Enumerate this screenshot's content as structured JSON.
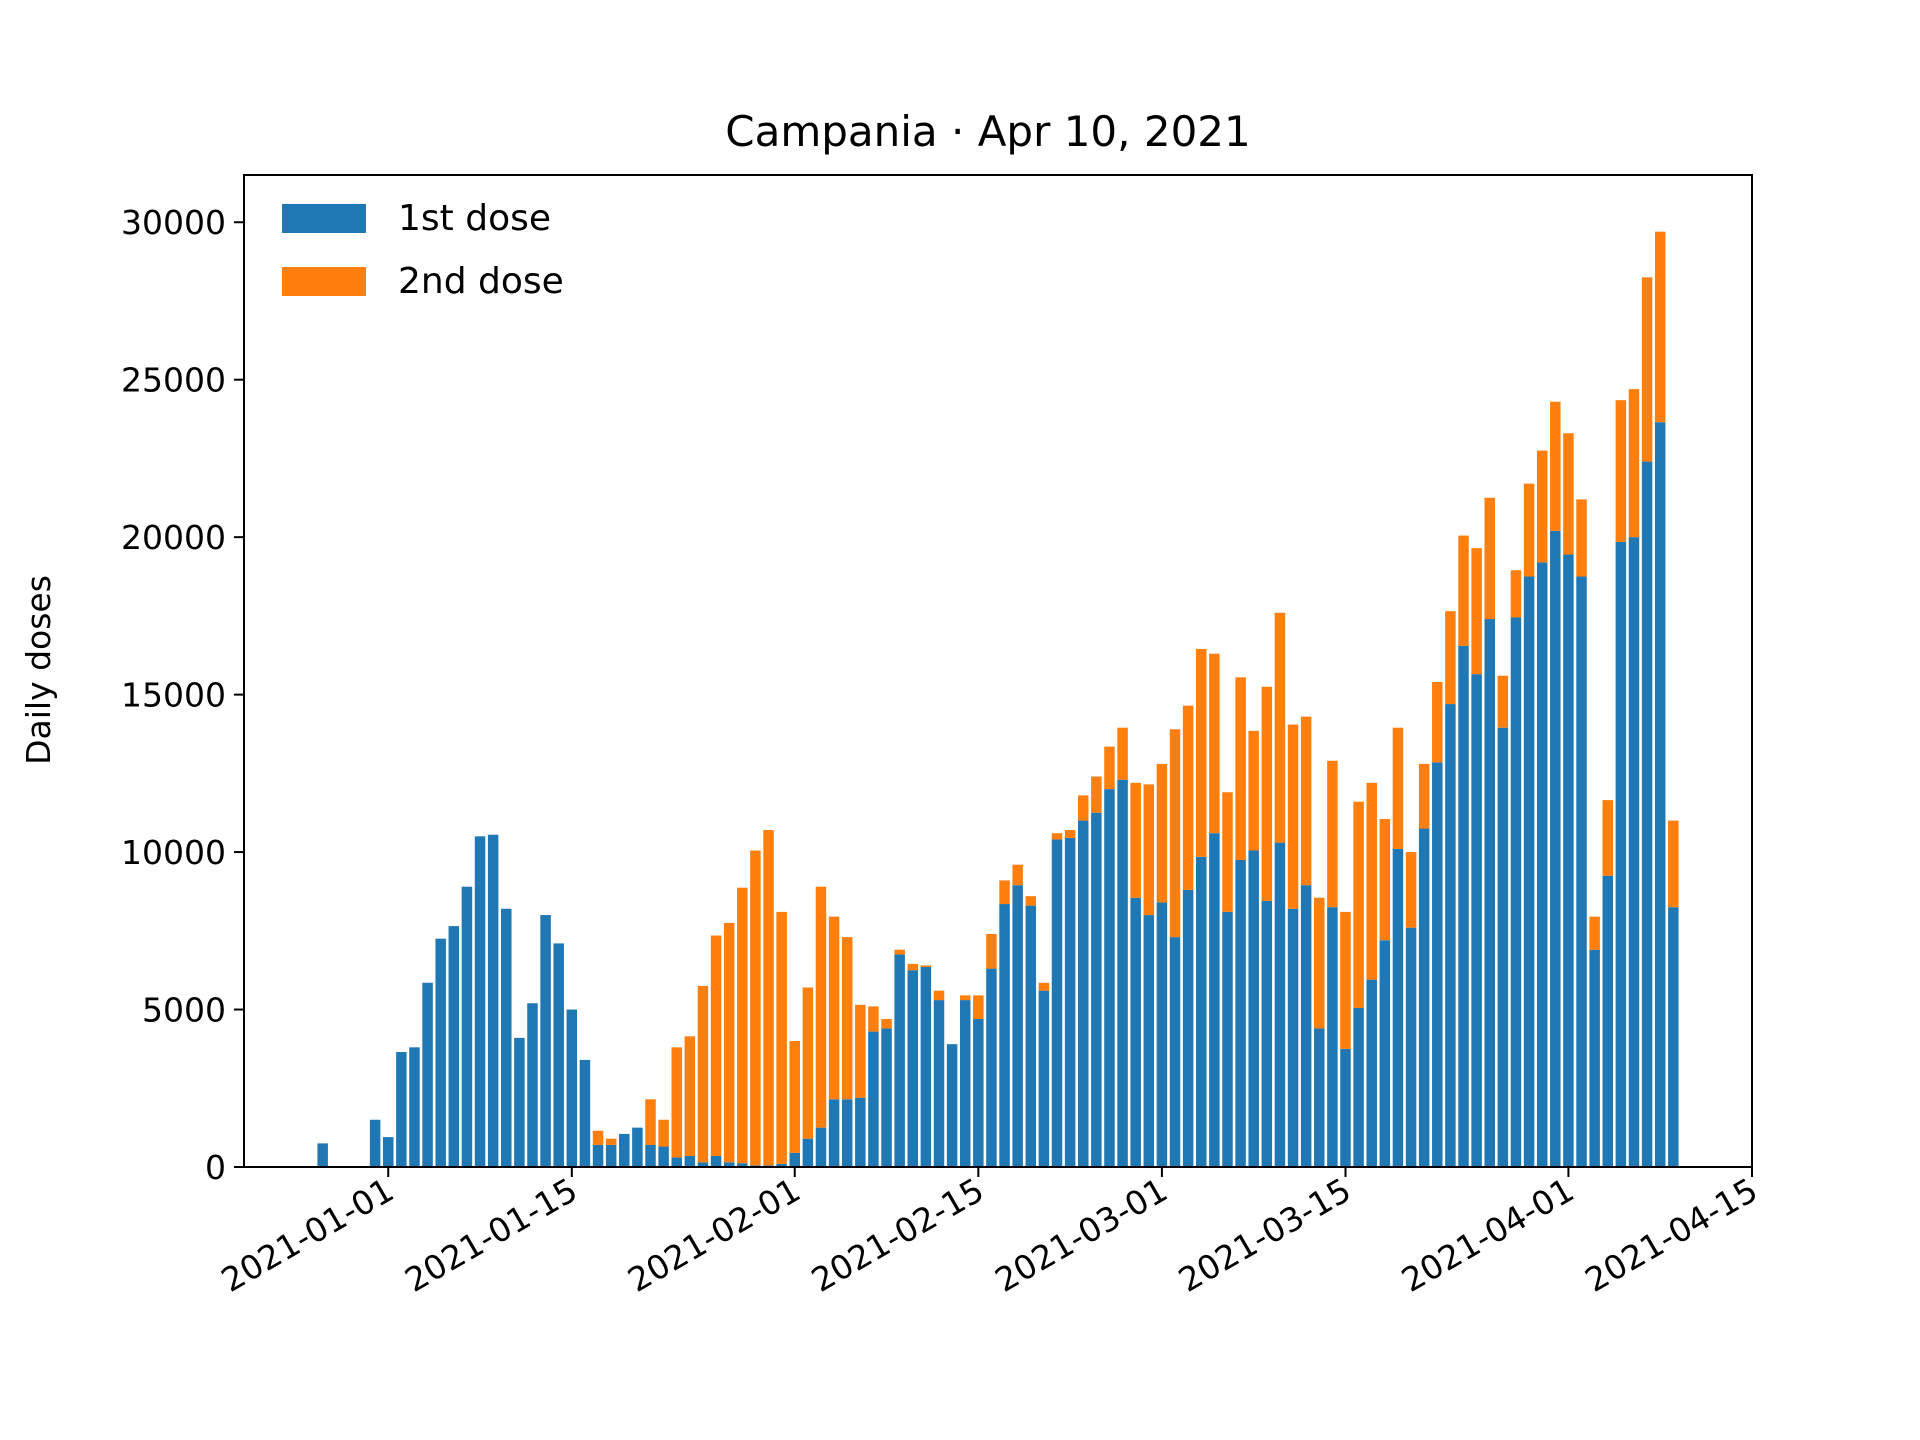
{
  "chart_data": {
    "type": "bar",
    "stacked": true,
    "title": "Campania · Apr 10, 2021",
    "xlabel": "",
    "ylabel": "Daily doses",
    "xlim": [
      "2020-12-21",
      "2021-04-15"
    ],
    "ylim": [
      0,
      31500
    ],
    "yticks": [
      0,
      5000,
      10000,
      15000,
      20000,
      25000,
      30000
    ],
    "xticks": [
      "2021-01-01",
      "2021-01-15",
      "2021-02-01",
      "2021-02-15",
      "2021-03-01",
      "2021-03-15",
      "2021-04-01",
      "2021-04-15"
    ],
    "legend": {
      "placement": "top-left"
    },
    "start_date": "2020-12-27",
    "series": [
      {
        "name": "1st dose",
        "color": "#1f77b4",
        "values": [
          750,
          0,
          0,
          0,
          1500,
          950,
          3650,
          3800,
          5850,
          7250,
          7650,
          8900,
          10500,
          10550,
          8200,
          4100,
          5200,
          8000,
          7100,
          5000,
          3400,
          700,
          700,
          1050,
          1250,
          700,
          650,
          300,
          350,
          150,
          350,
          150,
          120,
          50,
          50,
          100,
          450,
          900,
          1250,
          2150,
          2150,
          2200,
          4300,
          4400,
          6750,
          6250,
          6350,
          5300,
          3900,
          5300,
          4700,
          6300,
          8350,
          8950,
          8300,
          5600,
          10400,
          10450,
          11000,
          11250,
          12000,
          12300,
          8550,
          8000,
          8400,
          7300,
          8800,
          9850,
          10600,
          8100,
          9750,
          10050,
          8450,
          10300,
          8200,
          8950,
          4400,
          8250,
          3750,
          5050,
          5950,
          7200,
          10100,
          7600,
          10750,
          12850,
          14700,
          16550,
          15650,
          17400,
          13950,
          17450,
          18750,
          19200,
          20200,
          19450,
          18750,
          6900,
          9250,
          19850,
          20000,
          22400,
          23650,
          8250
        ]
      },
      {
        "name": "2nd dose",
        "color": "#ff7f0e",
        "values": [
          0,
          0,
          0,
          0,
          0,
          0,
          0,
          0,
          0,
          0,
          0,
          0,
          0,
          0,
          0,
          0,
          0,
          0,
          0,
          0,
          0,
          450,
          200,
          0,
          0,
          1450,
          850,
          3500,
          3800,
          5600,
          7000,
          7600,
          8750,
          10000,
          10650,
          8000,
          3550,
          4800,
          7650,
          5800,
          5150,
          2950,
          800,
          300,
          150,
          200,
          50,
          300,
          0,
          150,
          750,
          1100,
          750,
          650,
          300,
          250,
          200,
          250,
          800,
          1150,
          1350,
          1650,
          3650,
          4150,
          4400,
          6600,
          5850,
          6600,
          5700,
          3800,
          5800,
          3800,
          6800,
          7300,
          5850,
          5350,
          4150,
          4650,
          4350,
          6550,
          6250,
          3850,
          3850,
          2400,
          2050,
          2550,
          2950,
          3500,
          4000,
          3850,
          1650,
          1500,
          2950,
          3550,
          4100,
          3850,
          2450,
          1050,
          2400,
          4500,
          4700,
          5850,
          6050,
          2750
        ]
      }
    ]
  }
}
